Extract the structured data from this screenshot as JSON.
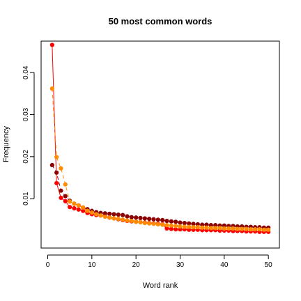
{
  "chart_data": {
    "type": "line",
    "title": "50 most common words",
    "xlabel": "Word rank",
    "ylabel": "Frequency",
    "xlim": [
      0,
      51
    ],
    "ylim": [
      0,
      0.047
    ],
    "x_ticks": [
      0,
      10,
      20,
      30,
      40,
      50
    ],
    "x_tick_labels": [
      "0",
      "10",
      "20",
      "30",
      "40",
      "50"
    ],
    "y_ticks": [
      0.01,
      0.02,
      0.03,
      0.04
    ],
    "y_tick_labels": [
      "0.01",
      "0.02",
      "0.03",
      "0.04"
    ],
    "grid": false,
    "series": [
      {
        "color": "#ff0000",
        "line_style": "solid",
        "x": [
          1,
          2,
          3,
          4,
          5,
          6,
          7,
          8,
          9,
          10,
          11,
          12,
          13,
          14,
          15,
          16,
          17,
          18,
          19,
          20,
          21,
          22,
          23,
          24,
          25,
          26,
          27,
          28,
          29,
          30,
          31,
          32,
          33,
          34,
          35,
          36,
          37,
          38,
          39,
          40,
          41,
          42,
          43,
          44,
          45,
          46,
          47,
          48,
          49,
          50
        ],
        "values": [
          0.0466,
          0.0137,
          0.0102,
          0.0094,
          0.008,
          0.0077,
          0.0074,
          0.0071,
          0.0066,
          0.0063,
          0.0061,
          0.006,
          0.0058,
          0.0055,
          0.0053,
          0.0051,
          0.0049,
          0.0047,
          0.0046,
          0.0045,
          0.0044,
          0.0043,
          0.0042,
          0.0041,
          0.004,
          0.0039,
          0.0029,
          0.0028,
          0.0027,
          0.0027,
          0.0027,
          0.0026,
          0.0026,
          0.0026,
          0.0025,
          0.0025,
          0.0025,
          0.0025,
          0.0024,
          0.0024,
          0.0024,
          0.0023,
          0.0023,
          0.0023,
          0.0022,
          0.0022,
          0.0022,
          0.0021,
          0.0021,
          0.0021
        ]
      },
      {
        "color": "#8b0000",
        "line_style": "dashed",
        "x": [
          1,
          2,
          3,
          4,
          5,
          6,
          7,
          8,
          9,
          10,
          11,
          12,
          13,
          14,
          15,
          16,
          17,
          18,
          19,
          20,
          21,
          22,
          23,
          24,
          25,
          26,
          27,
          28,
          29,
          30,
          31,
          32,
          33,
          34,
          35,
          36,
          37,
          38,
          39,
          40,
          41,
          42,
          43,
          44,
          45,
          46,
          47,
          48,
          49,
          50
        ],
        "values": [
          0.018,
          0.0162,
          0.0119,
          0.0106,
          0.0095,
          0.0088,
          0.0084,
          0.0079,
          0.0075,
          0.0071,
          0.0068,
          0.0066,
          0.0065,
          0.0064,
          0.0063,
          0.0062,
          0.0061,
          0.0058,
          0.0056,
          0.0055,
          0.0054,
          0.0053,
          0.0052,
          0.0051,
          0.005,
          0.0049,
          0.0047,
          0.0046,
          0.0045,
          0.0043,
          0.0042,
          0.0041,
          0.004,
          0.0039,
          0.0038,
          0.0038,
          0.0037,
          0.0037,
          0.0036,
          0.0036,
          0.0035,
          0.0035,
          0.0034,
          0.0034,
          0.0033,
          0.0033,
          0.0032,
          0.0032,
          0.0031,
          0.0031
        ]
      },
      {
        "color": "#ff8c00",
        "line_style": "dashed",
        "x": [
          1,
          2,
          3,
          4,
          5,
          6,
          7,
          8,
          9,
          10,
          11,
          12,
          13,
          14,
          15,
          16,
          17,
          18,
          19,
          20,
          21,
          22,
          23,
          24,
          25,
          26,
          27,
          28,
          29,
          30,
          31,
          32,
          33,
          34,
          35,
          36,
          37,
          38,
          39,
          40,
          41,
          42,
          43,
          44,
          45,
          46,
          47,
          48,
          49,
          50
        ],
        "values": [
          0.0362,
          0.0199,
          0.0172,
          0.0134,
          0.0093,
          0.0088,
          0.0084,
          0.0079,
          0.0071,
          0.0067,
          0.0063,
          0.006,
          0.0057,
          0.0055,
          0.0053,
          0.0052,
          0.005,
          0.0048,
          0.0047,
          0.0045,
          0.0044,
          0.0042,
          0.0041,
          0.004,
          0.0039,
          0.0038,
          0.0037,
          0.0036,
          0.0035,
          0.0034,
          0.0033,
          0.0033,
          0.0032,
          0.0032,
          0.0031,
          0.0031,
          0.003,
          0.003,
          0.003,
          0.0029,
          0.0029,
          0.0029,
          0.0028,
          0.0028,
          0.0028,
          0.0027,
          0.0027,
          0.0027,
          0.0026,
          0.0026
        ]
      }
    ]
  }
}
